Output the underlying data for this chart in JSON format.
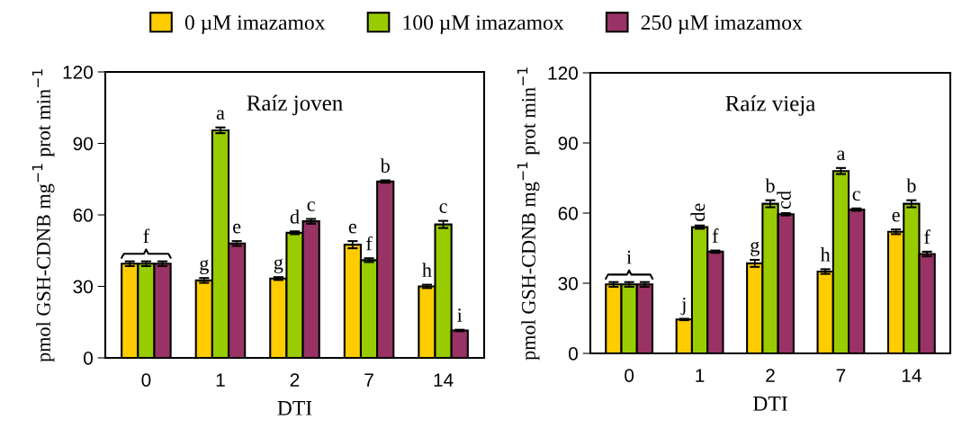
{
  "chart_data": [
    {
      "type": "bar",
      "title": "Raíz joven",
      "xlabel": "DTI",
      "ylabel": "pmol GSH-CDNB mg$^{−1}$ prot min$^{−1}$",
      "categories": [
        "0",
        "1",
        "2",
        "7",
        "14"
      ],
      "ylim": [
        0,
        120
      ],
      "yticks": [
        0,
        30,
        60,
        90,
        120
      ],
      "legend": "top",
      "grid": false,
      "series": [
        {
          "name": "0 µM imazamox",
          "color": "#ffcc00",
          "values": [
            39.5,
            32.5,
            33.3,
            47.5,
            30
          ],
          "errors": [
            1,
            1,
            0.6,
            1.5,
            0.7
          ],
          "value_labels": [
            null,
            "g",
            "g",
            "e",
            "h"
          ]
        },
        {
          "name": "100 µM imazamox",
          "color": "#99cc00",
          "values": [
            39.5,
            95.5,
            52.5,
            41,
            56
          ],
          "errors": [
            1,
            1.2,
            0.6,
            0.8,
            1.5
          ],
          "value_labels": [
            null,
            "a",
            "d",
            "f",
            "c"
          ]
        },
        {
          "name": "250 µM imazamox",
          "color": "#993366",
          "values": [
            39.5,
            48,
            57.3,
            74,
            11.5
          ],
          "errors": [
            1,
            1,
            1,
            0.5,
            0.3
          ],
          "value_labels": [
            null,
            "e",
            "c",
            "b",
            "i"
          ]
        }
      ],
      "annotations": [
        {
          "text": "f",
          "x": "0",
          "y": 39.5
        }
      ]
    },
    {
      "type": "bar",
      "title": "Raíz vieja",
      "xlabel": "DTI",
      "ylabel": "pmol GSH-CDNB mg$^{−1}$ prot min$^{−1}$",
      "categories": [
        "0",
        "1",
        "2",
        "7",
        "14"
      ],
      "ylim": [
        0,
        120
      ],
      "yticks": [
        0,
        30,
        60,
        90,
        120
      ],
      "grid": false,
      "series": [
        {
          "color": "#ffcc00",
          "values": [
            29.5,
            14.5,
            38.5,
            35,
            52
          ],
          "errors": [
            1,
            0.3,
            1.5,
            1,
            1
          ],
          "value_labels": [
            null,
            "j",
            "g",
            "h",
            "e"
          ]
        },
        {
          "color": "#99cc00",
          "values": [
            29.5,
            54,
            64,
            78,
            64
          ],
          "errors": [
            1,
            0.7,
            1.5,
            1.3,
            1.5
          ],
          "value_labels": [
            null,
            "de",
            "b",
            "a",
            "b"
          ]
        },
        {
          "color": "#993366",
          "values": [
            29.5,
            43.5,
            59.5,
            61.5,
            42.5
          ],
          "errors": [
            1,
            0.5,
            0.5,
            0.5,
            1
          ],
          "value_labels": [
            null,
            "f",
            "cd",
            "c",
            "f"
          ]
        }
      ],
      "annotations": [
        {
          "text": "i",
          "x": "0",
          "y": 29.5
        }
      ]
    }
  ]
}
